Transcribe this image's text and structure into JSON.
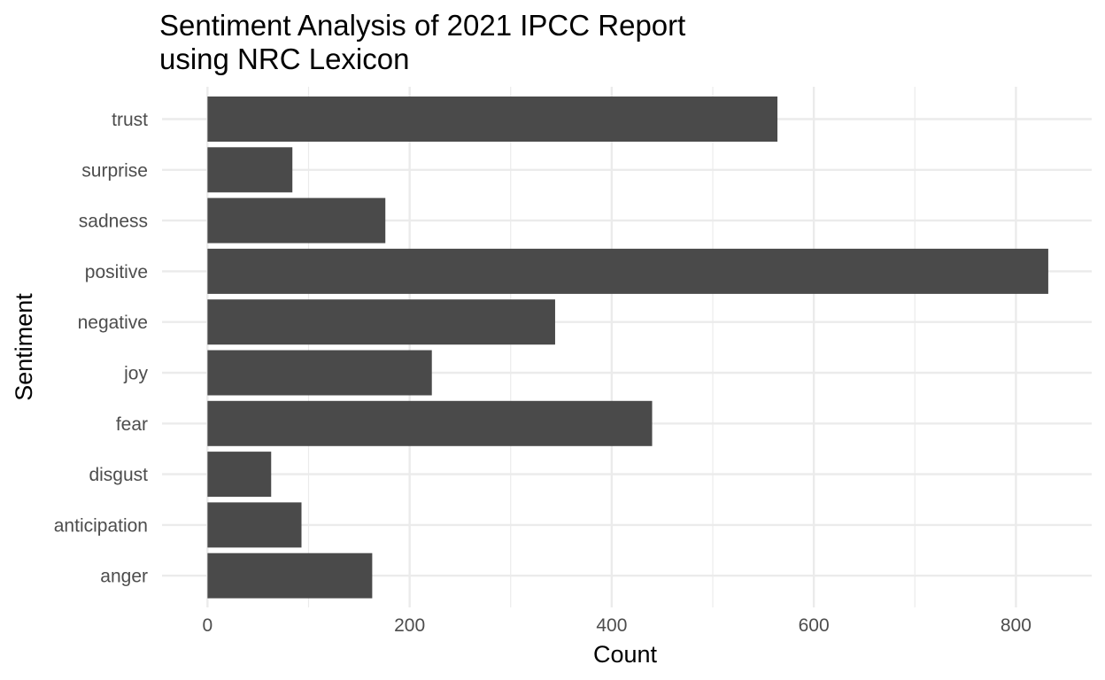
{
  "chart_data": {
    "type": "bar",
    "orientation": "horizontal",
    "title_lines": [
      "Sentiment Analysis of 2021 IPCC Report",
      "using NRC Lexicon"
    ],
    "xlabel": "Count",
    "ylabel": "Sentiment",
    "categories": [
      "anger",
      "anticipation",
      "disgust",
      "fear",
      "joy",
      "negative",
      "positive",
      "sadness",
      "surprise",
      "trust"
    ],
    "values": [
      163,
      93,
      63,
      440,
      222,
      344,
      832,
      176,
      84,
      564
    ],
    "xlim": [
      -45,
      875
    ],
    "xticks": [
      0,
      200,
      400,
      600,
      800
    ],
    "xtick_labels": [
      "0",
      "200",
      "400",
      "600",
      "800"
    ],
    "grid": true,
    "legend": "none",
    "colors": {
      "bar": "#4a4a4a",
      "grid_major": "#ebebeb",
      "grid_minor": "#ebebeb",
      "background": "#ffffff"
    }
  }
}
